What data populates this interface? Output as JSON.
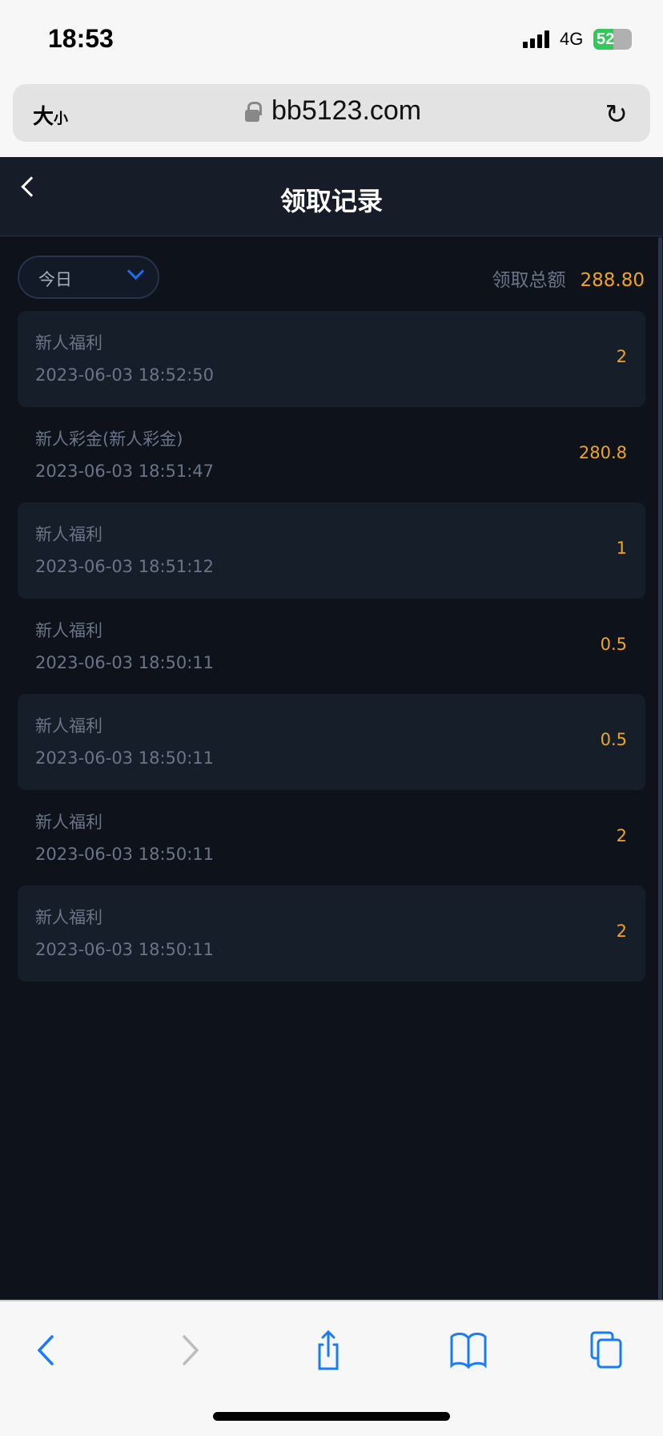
{
  "status_bar": {
    "time": "18:53",
    "network": "4G",
    "battery": "52",
    "battery_level": 0.52
  },
  "browser": {
    "text_size": "大",
    "text_size_small": "小",
    "host": "bb5123.com"
  },
  "header": {
    "title": "领取记录"
  },
  "filter": {
    "selected": "今日"
  },
  "summary": {
    "label": "领取总额",
    "amount": "288.80"
  },
  "records": [
    {
      "name": "新人福利",
      "time": "2023-06-03 18:52:50",
      "amount": "2"
    },
    {
      "name": "新人彩金(新人彩金)",
      "time": "2023-06-03 18:51:47",
      "amount": "280.8"
    },
    {
      "name": "新人福利",
      "time": "2023-06-03 18:51:12",
      "amount": "1"
    },
    {
      "name": "新人福利",
      "time": "2023-06-03 18:50:11",
      "amount": "0.5"
    },
    {
      "name": "新人福利",
      "time": "2023-06-03 18:50:11",
      "amount": "0.5"
    },
    {
      "name": "新人福利",
      "time": "2023-06-03 18:50:11",
      "amount": "2"
    },
    {
      "name": "新人福利",
      "time": "2023-06-03 18:50:11",
      "amount": "2"
    }
  ],
  "colors": {
    "accent": "#1a6ef5",
    "amount": "#f0a51e",
    "background": "#0e121b"
  }
}
